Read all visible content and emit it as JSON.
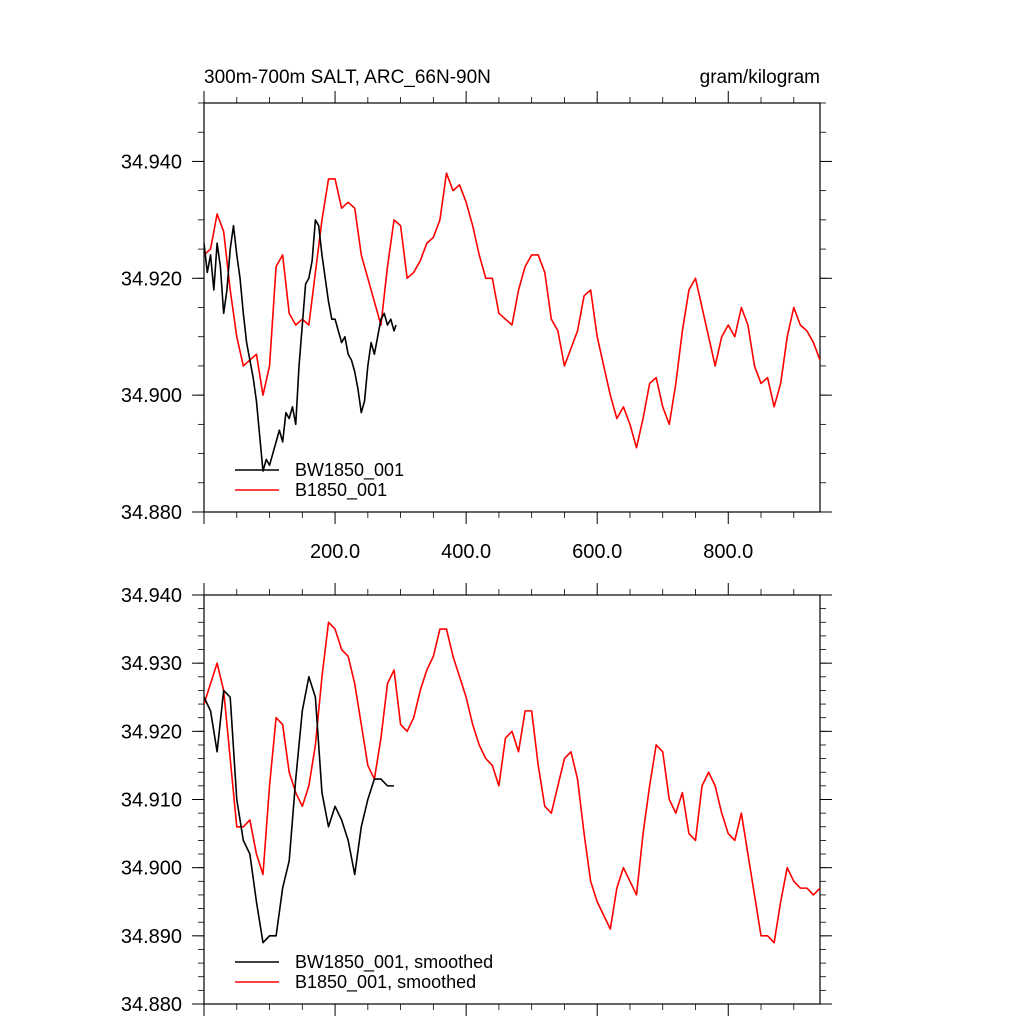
{
  "chart_data": [
    {
      "type": "line",
      "title": "300m-700m SALT, ARC_66N-90N",
      "units": "gram/kilogram",
      "xlabel": "",
      "ylabel": "",
      "xlim": [
        0,
        940
      ],
      "ylim": [
        34.88,
        34.95
      ],
      "xticks": [
        200,
        400,
        600,
        800
      ],
      "xtick_labels": [
        "200.0",
        "400.0",
        "600.0",
        "800.0"
      ],
      "yticks": [
        34.88,
        34.9,
        34.92,
        34.94
      ],
      "ytick_labels": [
        "34.880",
        "34.900",
        "34.920",
        "34.940"
      ],
      "grid": false,
      "legend": "bottom-left",
      "series": [
        {
          "name": "BW1850_001",
          "color": "#000000",
          "x": [
            0,
            5,
            10,
            15,
            20,
            25,
            30,
            35,
            40,
            45,
            50,
            55,
            60,
            65,
            70,
            75,
            80,
            85,
            90,
            95,
            100,
            105,
            110,
            115,
            120,
            125,
            130,
            135,
            140,
            145,
            150,
            155,
            160,
            165,
            170,
            175,
            180,
            185,
            190,
            195,
            200,
            205,
            210,
            215,
            220,
            225,
            230,
            235,
            240,
            245,
            250,
            255,
            260,
            265,
            270,
            275,
            280,
            285,
            290,
            293
          ],
          "y": [
            34.926,
            34.921,
            34.924,
            34.918,
            34.926,
            34.922,
            34.914,
            34.918,
            34.925,
            34.929,
            34.924,
            34.92,
            34.914,
            34.909,
            34.906,
            34.903,
            34.899,
            34.893,
            34.887,
            34.889,
            34.888,
            34.89,
            34.892,
            34.894,
            34.892,
            34.897,
            34.896,
            34.898,
            34.895,
            34.905,
            34.912,
            34.919,
            34.92,
            34.923,
            34.93,
            34.929,
            34.924,
            34.92,
            34.916,
            34.913,
            34.913,
            34.911,
            34.909,
            34.91,
            34.907,
            34.906,
            34.904,
            34.901,
            34.897,
            34.899,
            34.905,
            34.909,
            34.907,
            34.91,
            34.913,
            34.914,
            34.912,
            34.913,
            34.911,
            34.912
          ]
        },
        {
          "name": "B1850_001",
          "color": "#ff0000",
          "x": [
            0,
            10,
            20,
            30,
            40,
            50,
            60,
            70,
            80,
            90,
            100,
            110,
            120,
            130,
            140,
            150,
            160,
            170,
            180,
            190,
            200,
            210,
            220,
            230,
            240,
            250,
            260,
            270,
            280,
            290,
            300,
            310,
            320,
            330,
            340,
            350,
            360,
            370,
            380,
            390,
            400,
            410,
            420,
            430,
            440,
            450,
            460,
            470,
            480,
            490,
            500,
            510,
            520,
            530,
            540,
            550,
            560,
            570,
            580,
            590,
            600,
            610,
            620,
            630,
            640,
            650,
            660,
            670,
            680,
            690,
            700,
            710,
            720,
            730,
            740,
            750,
            760,
            770,
            780,
            790,
            800,
            810,
            820,
            830,
            840,
            850,
            860,
            870,
            880,
            890,
            900,
            910,
            920,
            930,
            940
          ],
          "y": [
            34.924,
            34.925,
            34.931,
            34.928,
            34.918,
            34.91,
            34.905,
            34.906,
            34.907,
            34.9,
            34.905,
            34.922,
            34.924,
            34.914,
            34.912,
            34.913,
            34.912,
            34.921,
            34.93,
            34.937,
            34.937,
            34.932,
            34.933,
            34.932,
            34.924,
            34.92,
            34.916,
            34.912,
            34.922,
            34.93,
            34.929,
            34.92,
            34.921,
            34.923,
            34.926,
            34.927,
            34.93,
            34.938,
            34.935,
            34.936,
            34.933,
            34.929,
            34.924,
            34.92,
            34.92,
            34.914,
            34.913,
            34.912,
            34.918,
            34.922,
            34.924,
            34.924,
            34.921,
            34.913,
            34.911,
            34.905,
            34.908,
            34.911,
            34.917,
            34.918,
            34.91,
            34.905,
            34.9,
            34.896,
            34.898,
            34.895,
            34.891,
            34.896,
            34.902,
            34.903,
            34.898,
            34.895,
            34.902,
            34.911,
            34.918,
            34.92,
            34.915,
            34.91,
            34.905,
            34.91,
            34.912,
            34.91,
            34.915,
            34.912,
            34.905,
            34.902,
            34.903,
            34.898,
            34.902,
            34.91,
            34.915,
            34.912,
            34.911,
            34.909,
            34.906
          ],
          "display_x": [
            0,
            10,
            20,
            30,
            40,
            50,
            60,
            70,
            80,
            90,
            100,
            110,
            120,
            130,
            140,
            150,
            160,
            170,
            180,
            190,
            200,
            210,
            220,
            230,
            240,
            250,
            260,
            270,
            280,
            290,
            300,
            310,
            320,
            330,
            340,
            350,
            360,
            370,
            380,
            390,
            400,
            410,
            420,
            430,
            440,
            450,
            460,
            470,
            480,
            490,
            500,
            510,
            520,
            530,
            540,
            550,
            560,
            570,
            580,
            590,
            600,
            610,
            620,
            630,
            640,
            650,
            660,
            670,
            680,
            690,
            700,
            710,
            720,
            730,
            740,
            750,
            760,
            770,
            780,
            790,
            800,
            810,
            820,
            830,
            840,
            850,
            860,
            870,
            880,
            890,
            900,
            910,
            920,
            930,
            940
          ]
        }
      ]
    },
    {
      "type": "line",
      "title": "",
      "xlabel": "",
      "ylabel": "",
      "xlim": [
        0,
        940
      ],
      "ylim": [
        34.88,
        34.94
      ],
      "yticks": [
        34.88,
        34.89,
        34.9,
        34.91,
        34.92,
        34.93,
        34.94
      ],
      "ytick_labels": [
        "34.880",
        "34.890",
        "34.900",
        "34.910",
        "34.920",
        "34.930",
        "34.940"
      ],
      "grid": false,
      "legend": "bottom-left",
      "series": [
        {
          "name": "BW1850_001, smoothed",
          "color": "#000000",
          "x": [
            0,
            10,
            20,
            30,
            40,
            50,
            60,
            70,
            80,
            90,
            100,
            110,
            120,
            130,
            140,
            150,
            160,
            170,
            180,
            190,
            200,
            210,
            220,
            230,
            240,
            250,
            260,
            270,
            280,
            290
          ],
          "y": [
            34.925,
            34.923,
            34.917,
            34.926,
            34.925,
            34.91,
            34.904,
            34.902,
            34.895,
            34.889,
            34.89,
            34.89,
            34.897,
            34.901,
            34.913,
            34.923,
            34.928,
            34.925,
            34.911,
            34.906,
            34.909,
            34.907,
            34.904,
            34.899,
            34.906,
            34.91,
            34.913,
            34.913,
            34.912,
            34.912
          ]
        },
        {
          "name": "B1850_001, smoothed",
          "color": "#ff0000",
          "x": [
            0,
            10,
            20,
            30,
            40,
            50,
            60,
            70,
            80,
            90,
            100,
            110,
            120,
            130,
            140,
            150,
            160,
            170,
            180,
            190,
            200,
            210,
            220,
            230,
            240,
            250,
            260,
            270,
            280,
            290,
            300,
            310,
            320,
            330,
            340,
            350,
            360,
            370,
            380,
            390,
            400,
            410,
            420,
            430,
            440,
            450,
            460,
            470,
            480,
            490,
            500,
            510,
            520,
            530,
            540,
            550,
            560,
            570,
            580,
            590,
            600,
            610,
            620,
            630,
            640,
            650,
            660,
            670,
            680,
            690,
            700,
            710,
            720,
            730,
            740,
            750,
            760,
            770,
            780,
            790,
            800,
            810,
            820,
            830,
            840,
            850,
            860,
            870,
            880,
            890,
            900,
            910,
            920,
            930,
            940
          ],
          "y": [
            34.924,
            34.927,
            34.93,
            34.926,
            34.916,
            34.906,
            34.906,
            34.907,
            34.902,
            34.899,
            34.912,
            34.922,
            34.921,
            34.914,
            34.911,
            34.909,
            34.912,
            34.918,
            34.928,
            34.936,
            34.935,
            34.932,
            34.931,
            34.927,
            34.921,
            34.915,
            34.913,
            34.919,
            34.927,
            34.929,
            34.921,
            34.92,
            34.922,
            34.926,
            34.929,
            34.931,
            34.935,
            34.935,
            34.931,
            34.928,
            34.925,
            34.921,
            34.918,
            34.916,
            34.915,
            34.912,
            34.919,
            34.92,
            34.917,
            34.923,
            34.923,
            34.915,
            34.909,
            34.908,
            34.912,
            34.916,
            34.917,
            34.913,
            34.905,
            34.898,
            34.895,
            34.893,
            34.891,
            34.897,
            34.9,
            34.898,
            34.896,
            34.905,
            34.912,
            34.918,
            34.917,
            34.91,
            34.908,
            34.911,
            34.905,
            34.904,
            34.912,
            34.914,
            34.912,
            34.908,
            34.905,
            34.904,
            34.908,
            34.902,
            34.896,
            34.89,
            34.89,
            34.889,
            34.895,
            34.9,
            34.898,
            34.897,
            34.897,
            34.896,
            34.897
          ]
        }
      ]
    }
  ]
}
